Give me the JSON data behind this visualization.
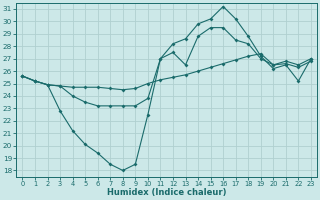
{
  "bg_color": "#cce8e8",
  "grid_color": "#b0d0d0",
  "line_color": "#1a6b6b",
  "xlabel": "Humidex (Indice chaleur)",
  "ylim": [
    17.5,
    31.5
  ],
  "xlim": [
    -0.5,
    23.5
  ],
  "yticks": [
    18,
    19,
    20,
    21,
    22,
    23,
    24,
    25,
    26,
    27,
    28,
    29,
    30,
    31
  ],
  "xticks": [
    0,
    1,
    2,
    3,
    4,
    5,
    6,
    7,
    8,
    9,
    10,
    11,
    12,
    13,
    14,
    15,
    16,
    17,
    18,
    19,
    20,
    21,
    22,
    23
  ],
  "series1_x": [
    0,
    1,
    2,
    3,
    4,
    5,
    6,
    7,
    8,
    9,
    10,
    11,
    12,
    13,
    14,
    15,
    16,
    17,
    18,
    19,
    20,
    21,
    22,
    23
  ],
  "series1_y": [
    25.6,
    25.2,
    24.9,
    24.8,
    24.7,
    24.7,
    24.7,
    24.6,
    24.5,
    24.6,
    25.0,
    25.3,
    25.5,
    25.7,
    26.0,
    26.3,
    26.6,
    26.9,
    27.2,
    27.4,
    26.5,
    26.6,
    26.3,
    26.8
  ],
  "series2_x": [
    0,
    1,
    2,
    3,
    4,
    5,
    6,
    7,
    8,
    9,
    10,
    11,
    12,
    13,
    14,
    15,
    16,
    17,
    18,
    19,
    20,
    21,
    22,
    23
  ],
  "series2_y": [
    25.6,
    25.2,
    24.9,
    22.8,
    21.2,
    20.1,
    19.4,
    18.5,
    18.0,
    18.5,
    22.5,
    27.0,
    28.2,
    28.6,
    29.8,
    30.2,
    31.2,
    30.2,
    28.8,
    27.2,
    26.2,
    26.5,
    25.2,
    27.0
  ],
  "series3_x": [
    0,
    1,
    2,
    3,
    4,
    5,
    6,
    7,
    8,
    9,
    10,
    11,
    12,
    13,
    14,
    15,
    16,
    17,
    18,
    19,
    20,
    21,
    22,
    23
  ],
  "series3_y": [
    25.6,
    25.2,
    24.9,
    24.8,
    24.0,
    23.5,
    23.2,
    23.2,
    23.2,
    23.2,
    23.8,
    27.0,
    27.5,
    26.5,
    28.8,
    29.5,
    29.5,
    28.5,
    28.2,
    27.0,
    26.5,
    26.8,
    26.5,
    27.0
  ]
}
